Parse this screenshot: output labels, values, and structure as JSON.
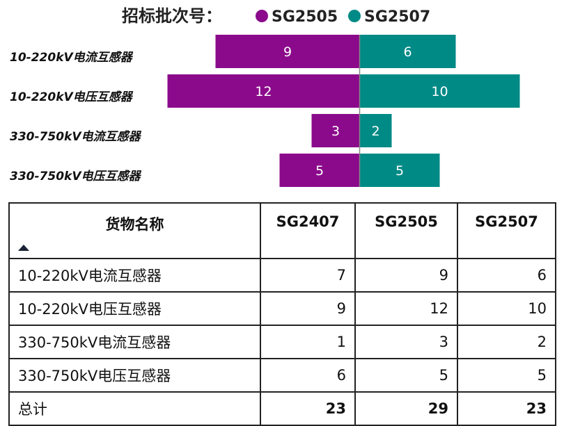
{
  "legend": {
    "title": "招标批次号：",
    "items": [
      {
        "name": "SG2505",
        "color": "#8b0a8b"
      },
      {
        "name": "SG2507",
        "color": "#008a86"
      }
    ]
  },
  "chart_data": {
    "type": "bar",
    "orientation": "horizontal-diverging",
    "categories": [
      "10-220kV电流互感器",
      "10-220kV电压互感器",
      "330-750kV电流互感器",
      "330-750kV电压互感器"
    ],
    "series": [
      {
        "name": "SG2505",
        "values": [
          9,
          12,
          3,
          5
        ],
        "color": "#8b0a8b"
      },
      {
        "name": "SG2507",
        "values": [
          6,
          10,
          2,
          5
        ],
        "color": "#008a86"
      }
    ]
  },
  "table": {
    "headers": [
      "货物名称",
      "SG2407",
      "SG2505",
      "SG2507"
    ],
    "sort_icon": "sort-ascending-icon",
    "rows": [
      [
        "10-220kV电流互感器",
        "7",
        "9",
        "6"
      ],
      [
        "10-220kV电压互感器",
        "9",
        "12",
        "10"
      ],
      [
        "330-750kV电流互感器",
        "1",
        "3",
        "2"
      ],
      [
        "330-750kV电压互感器",
        "6",
        "5",
        "5"
      ]
    ],
    "total": [
      "总计",
      "23",
      "29",
      "23"
    ]
  }
}
